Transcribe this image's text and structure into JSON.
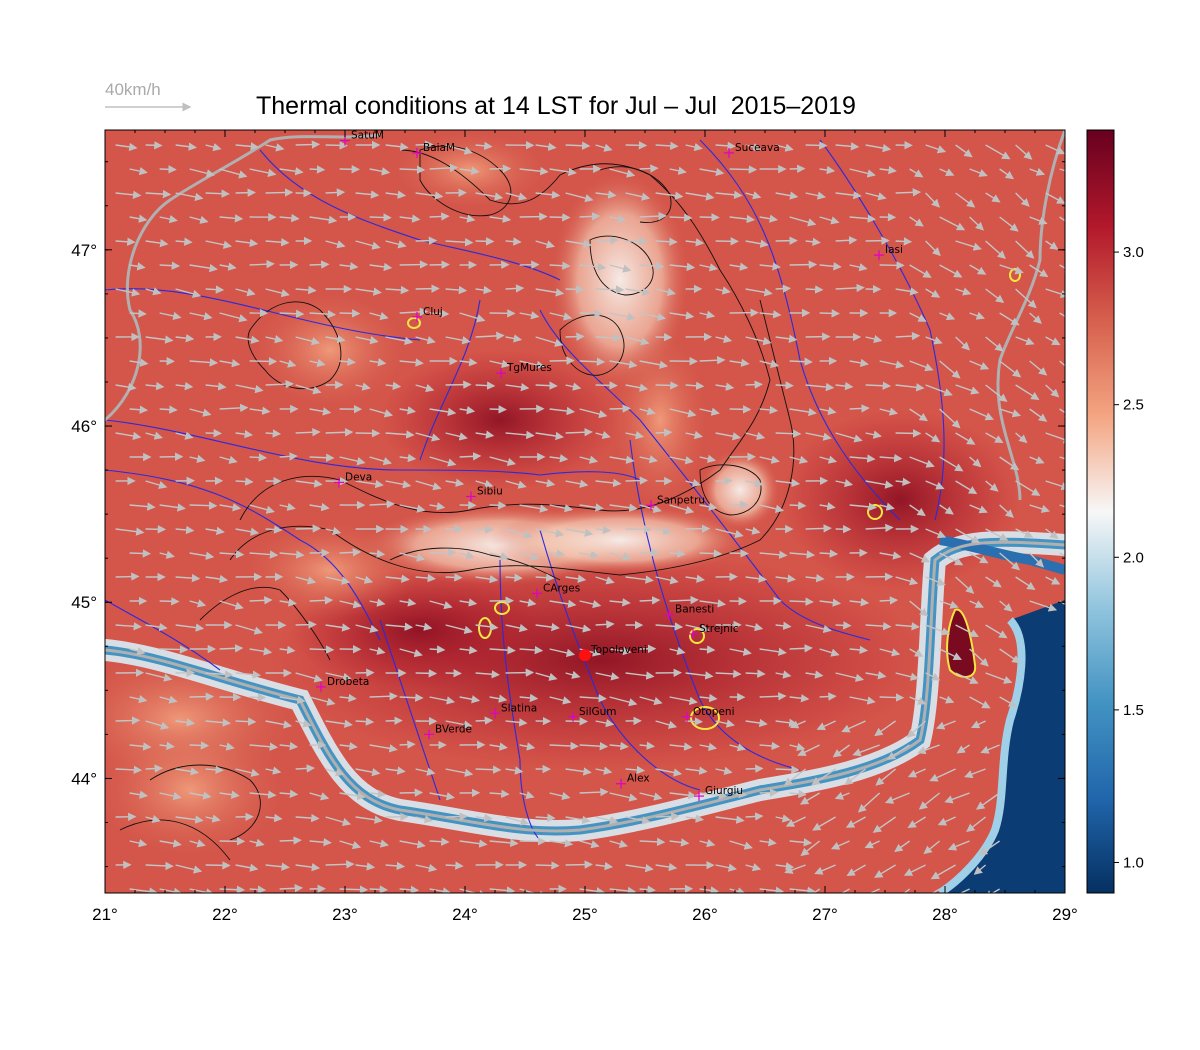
{
  "title": "Thermal conditions at 14 LST for Jul – Jul  2015–2019",
  "wind_reference": {
    "label": "40km/h"
  },
  "axes": {
    "x_ticks": [
      "21°",
      "22°",
      "23°",
      "24°",
      "25°",
      "26°",
      "27°",
      "28°",
      "29°"
    ],
    "y_ticks": [
      "44°",
      "45°",
      "46°",
      "47°"
    ]
  },
  "colorbar": {
    "ticks": [
      "1.0",
      "1.5",
      "2.0",
      "2.5",
      "3.0"
    ],
    "range": [
      0.9,
      3.4
    ],
    "colormap": [
      "#053061",
      "#2166ac",
      "#4393c3",
      "#92c5de",
      "#f7f7f7",
      "#f4a582",
      "#d6604d",
      "#b2182b",
      "#67001f"
    ]
  },
  "cities": [
    {
      "name": "SatuM",
      "lon": 23.0,
      "lat": 47.62
    },
    {
      "name": "BaiaM",
      "lon": 23.6,
      "lat": 47.55
    },
    {
      "name": "Suceava",
      "lon": 26.2,
      "lat": 47.55
    },
    {
      "name": "Iasi",
      "lon": 27.45,
      "lat": 46.97
    },
    {
      "name": "Cluj",
      "lon": 23.6,
      "lat": 46.62
    },
    {
      "name": "TgMures",
      "lon": 24.3,
      "lat": 46.3
    },
    {
      "name": "Deva",
      "lon": 22.95,
      "lat": 45.68
    },
    {
      "name": "Sibiu",
      "lon": 24.05,
      "lat": 45.6
    },
    {
      "name": "Sanpetru",
      "lon": 25.55,
      "lat": 45.55
    },
    {
      "name": "CArges",
      "lon": 24.6,
      "lat": 45.05
    },
    {
      "name": "Banesti",
      "lon": 25.7,
      "lat": 44.93
    },
    {
      "name": "Strejnic",
      "lon": 25.9,
      "lat": 44.82
    },
    {
      "name": "Topoloveni",
      "lon": 25.0,
      "lat": 44.7
    },
    {
      "name": "Drobeta",
      "lon": 22.8,
      "lat": 44.52
    },
    {
      "name": "Slatina",
      "lon": 24.25,
      "lat": 44.37
    },
    {
      "name": "SilGum",
      "lon": 24.9,
      "lat": 44.35
    },
    {
      "name": "Otopeni",
      "lon": 25.85,
      "lat": 44.35
    },
    {
      "name": "BVerde",
      "lon": 23.7,
      "lat": 44.25
    },
    {
      "name": "Alex",
      "lon": 25.3,
      "lat": 43.97
    },
    {
      "name": "Giurgiu",
      "lon": 25.95,
      "lat": 43.9
    }
  ],
  "highlighted_site": "Topoloveni"
}
